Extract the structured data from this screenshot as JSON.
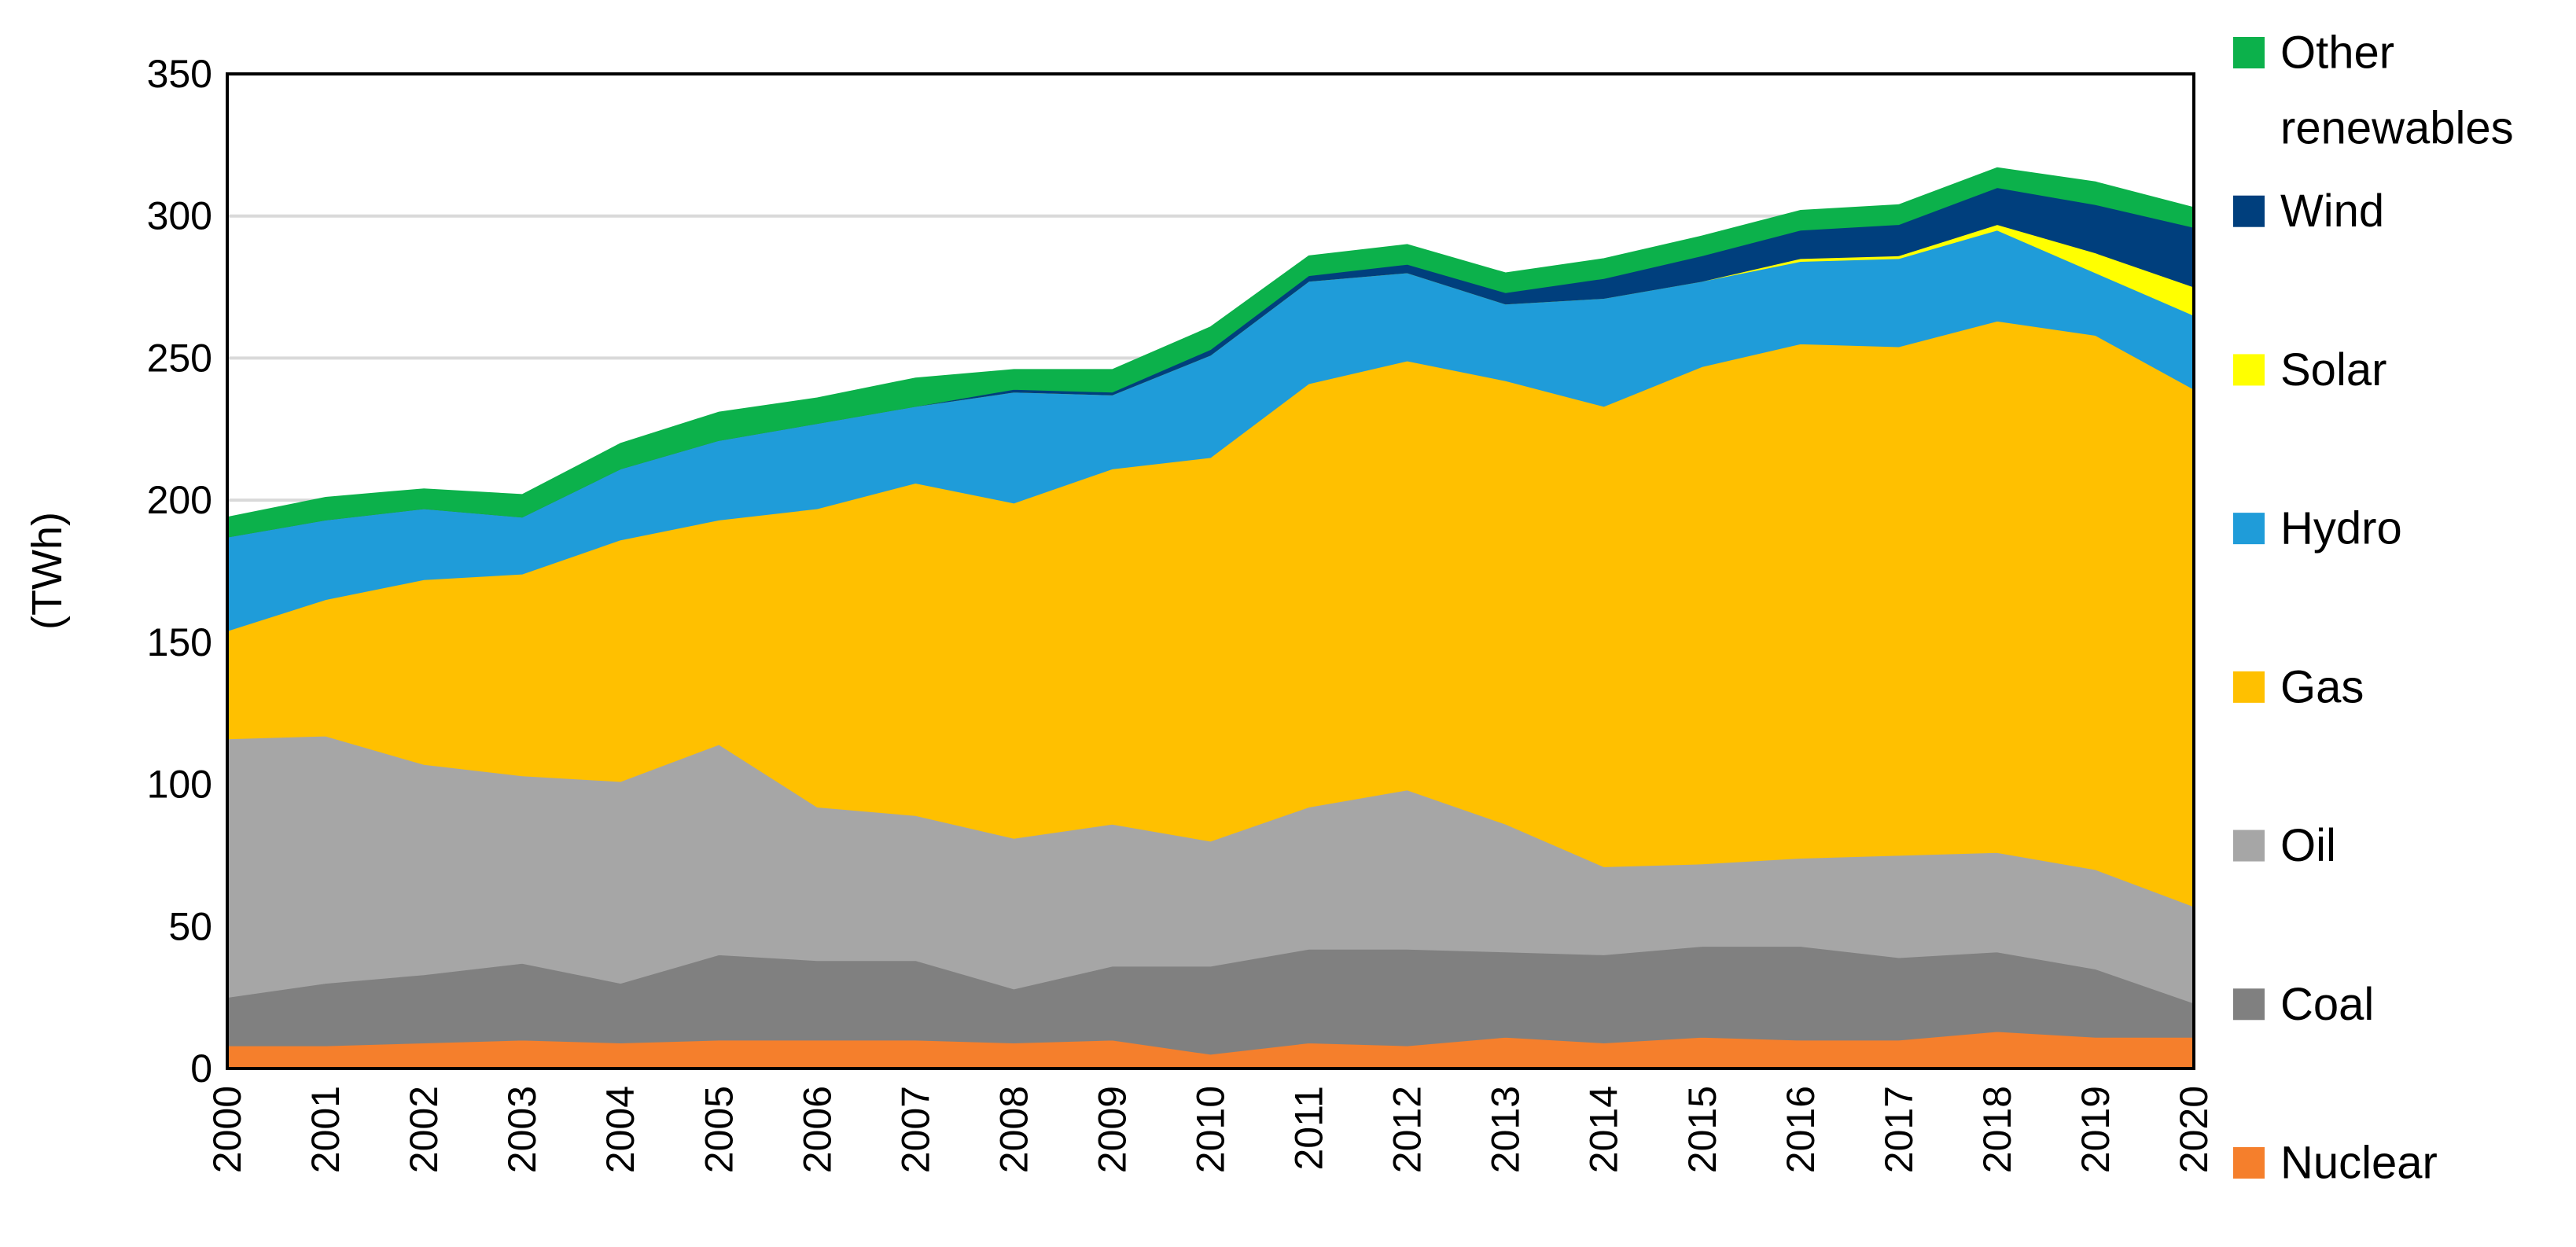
{
  "chart_data": {
    "type": "area",
    "stacked": true,
    "title": "",
    "xlabel": "",
    "ylabel": "(TWh)",
    "ylim": [
      0,
      350
    ],
    "yticks": [
      "0",
      "50",
      "100",
      "150",
      "200",
      "250",
      "300",
      "350"
    ],
    "grid": true,
    "legend_position": "right",
    "x": [
      "2000",
      "2001",
      "2002",
      "2003",
      "2004",
      "2005",
      "2006",
      "2007",
      "2008",
      "2009",
      "2010",
      "2011",
      "2012",
      "2013",
      "2014",
      "2015",
      "2016",
      "2017",
      "2018",
      "2019",
      "2020"
    ],
    "series": [
      {
        "name": "Nuclear",
        "color": "#F57F2C",
        "values": [
          8,
          8,
          9,
          10,
          9,
          10,
          10,
          10,
          9,
          10,
          5,
          9,
          8,
          11,
          9,
          11,
          10,
          10,
          13,
          11,
          11
        ]
      },
      {
        "name": "Coal",
        "color": "#808080",
        "values": [
          17,
          22,
          24,
          27,
          21,
          30,
          28,
          28,
          19,
          26,
          31,
          33,
          34,
          30,
          31,
          32,
          33,
          29,
          28,
          24,
          12
        ]
      },
      {
        "name": "Oil",
        "color": "#A6A6A6",
        "values": [
          91,
          87,
          74,
          66,
          71,
          74,
          54,
          51,
          53,
          50,
          44,
          50,
          56,
          45,
          31,
          29,
          31,
          36,
          35,
          35,
          34
        ]
      },
      {
        "name": "Gas",
        "color": "#FFC000",
        "values": [
          38,
          48,
          65,
          71,
          85,
          79,
          105,
          117,
          118,
          125,
          135,
          149,
          151,
          156,
          162,
          175,
          181,
          179,
          187,
          188,
          182
        ]
      },
      {
        "name": "Hydro",
        "color": "#1F9CD9",
        "values": [
          33,
          28,
          25,
          20,
          25,
          28,
          30,
          27,
          39,
          26,
          36,
          36,
          31,
          27,
          38,
          30,
          29,
          31,
          32,
          22,
          26
        ]
      },
      {
        "name": "Solar",
        "color": "#FFFF00",
        "values": [
          0,
          0,
          0,
          0,
          0,
          0,
          0,
          0,
          0,
          0,
          0,
          0,
          0,
          0,
          0,
          0,
          1,
          1,
          2,
          7,
          10
        ]
      },
      {
        "name": "Wind",
        "color": "#003F7D",
        "values": [
          0,
          0,
          0,
          0,
          0,
          0,
          0,
          0,
          1,
          1,
          2,
          2,
          3,
          4,
          7,
          9,
          10,
          11,
          13,
          17,
          21
        ]
      },
      {
        "name": "Other renewables",
        "legend_lines": [
          "Other",
          "renewables"
        ],
        "color": "#0CB14B",
        "values": [
          7,
          8,
          7,
          8,
          9,
          10,
          9,
          10,
          7,
          8,
          8,
          7,
          7,
          7,
          7,
          7,
          7,
          7,
          7,
          8,
          7
        ]
      }
    ]
  }
}
